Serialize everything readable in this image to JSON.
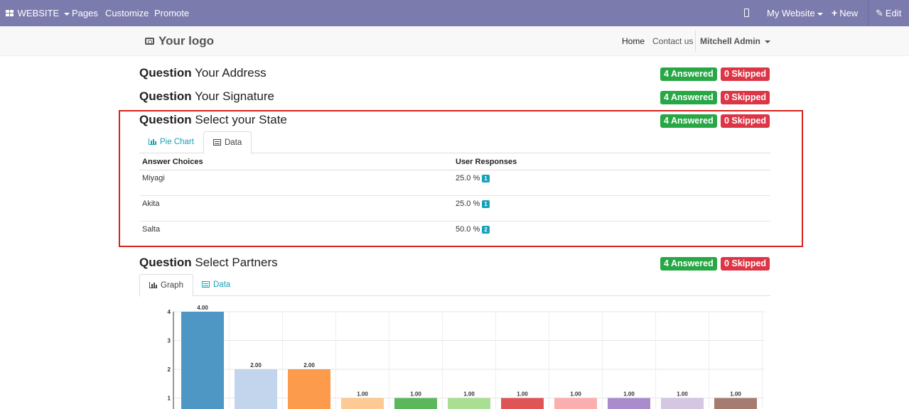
{
  "topbar": {
    "website_label": "WEBSITE",
    "pages_label": "Pages",
    "customize_label": "Customize",
    "promote_label": "Promote",
    "my_website_label": "My Website",
    "new_label": "New",
    "edit_label": "Edit",
    "background_color": "#7c7bad"
  },
  "header": {
    "logo_text": "Your logo",
    "nav": {
      "home": "Home",
      "contact": "Contact us",
      "user": "Mitchell Admin"
    }
  },
  "questions": [
    {
      "prefix": "Question",
      "title": "Your Address",
      "answered": "4 Answered",
      "skipped": "0 Skipped"
    },
    {
      "prefix": "Question",
      "title": "Your Signature",
      "answered": "4 Answered",
      "skipped": "0 Skipped"
    },
    {
      "prefix": "Question",
      "title": "Select your State",
      "answered": "4 Answered",
      "skipped": "0 Skipped",
      "tabs": [
        "Pie Chart",
        "Data"
      ],
      "active_tab": "Data",
      "table": {
        "headers": [
          "Answer Choices",
          "User Responses"
        ],
        "rows": [
          {
            "choice": "Miyagi",
            "percent": "25.0 %",
            "count": "1"
          },
          {
            "choice": "Akita",
            "percent": "25.0 %",
            "count": "1"
          },
          {
            "choice": "Salta",
            "percent": "50.0 %",
            "count": "2"
          }
        ]
      }
    },
    {
      "prefix": "Question",
      "title": "Select Partners",
      "answered": "4 Answered",
      "skipped": "0 Skipped",
      "tabs": [
        "Graph",
        "Data"
      ],
      "active_tab": "Graph"
    }
  ],
  "colors": {
    "answered": "#28a745",
    "skipped": "#dc3545",
    "accent": "#17a2b8",
    "highlight": "#d9201c"
  },
  "chart_data": {
    "type": "bar",
    "values": [
      4,
      2,
      2,
      1,
      1,
      1,
      1,
      1,
      1,
      1,
      1
    ],
    "value_labels": [
      "4.00",
      "2.00",
      "2.00",
      "1.00",
      "1.00",
      "1.00",
      "1.00",
      "1.00",
      "1.00",
      "1.00",
      "1.00"
    ],
    "colors": [
      "#4e97c5",
      "#c2d5ec",
      "#fc9b4c",
      "#fdc994",
      "#5bb75b",
      "#a9de94",
      "#df5555",
      "#fcaeae",
      "#a98ccc",
      "#d5c6e1",
      "#a67c70"
    ],
    "y_ticks": [
      "1",
      "2",
      "3",
      "4"
    ],
    "ylim": [
      0,
      4
    ],
    "grid": true
  }
}
